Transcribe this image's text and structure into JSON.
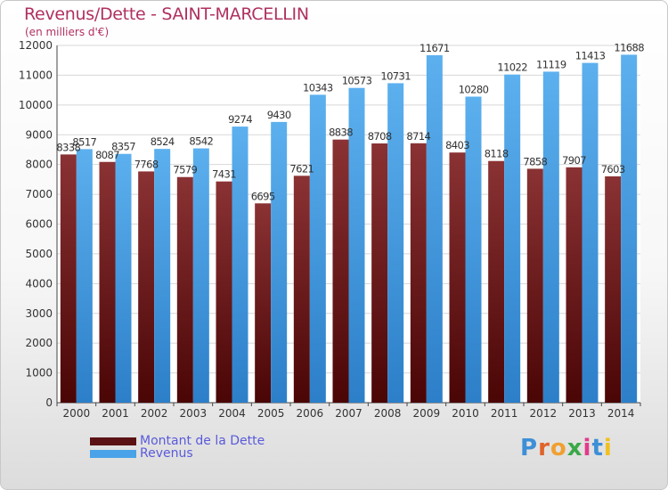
{
  "title": "Revenus/Dette - SAINT-MARCELLIN",
  "subtitle": "(en milliers d'€)",
  "colors": {
    "dette": "#7a1f22",
    "revenus": "#4aa3e8",
    "title": "#b03060",
    "legend_text": "#5a5adc"
  },
  "legend": [
    {
      "label": "Montant de la Dette",
      "color": "#7a1f22"
    },
    {
      "label": "Revenus",
      "color": "#4aa3e8"
    }
  ],
  "logo": {
    "text": "Proxiti"
  },
  "chart_data": {
    "type": "bar",
    "title": "Revenus/Dette - SAINT-MARCELLIN",
    "subtitle": "(en milliers d'€)",
    "categories": [
      "2000",
      "2001",
      "2002",
      "2003",
      "2004",
      "2005",
      "2006",
      "2007",
      "2008",
      "2009",
      "2010",
      "2011",
      "2012",
      "2013",
      "2014"
    ],
    "series": [
      {
        "name": "Montant de la Dette",
        "values": [
          8338,
          8087,
          7768,
          7579,
          7431,
          6695,
          7621,
          8838,
          8708,
          8714,
          8403,
          8118,
          7858,
          7907,
          7603
        ],
        "labels": [
          "8338",
          "8087",
          "7768",
          "7579",
          "7431",
          "6695",
          "7621",
          "8838",
          "8708",
          "8714",
          "8403",
          "8118",
          "7858",
          "7907",
          "7603"
        ]
      },
      {
        "name": "Revenus",
        "values": [
          8517,
          8357,
          8524,
          8542,
          9274,
          9430,
          10343,
          10573,
          10731,
          11671,
          10280,
          11022,
          11119,
          11413,
          11688
        ],
        "labels": [
          "8517",
          "8357",
          "8524",
          "8542",
          "9274",
          "9430",
          "10343",
          "10573",
          "10731",
          "11671",
          "10280",
          "11022",
          "11119",
          "11413",
          "11688"
        ]
      }
    ],
    "yticks": [
      0,
      1000,
      2000,
      3000,
      4000,
      5000,
      6000,
      7000,
      8000,
      9000,
      10000,
      11000,
      12000
    ],
    "ylim": [
      0,
      12000
    ],
    "grid": true,
    "legend_position": "bottom-left"
  }
}
